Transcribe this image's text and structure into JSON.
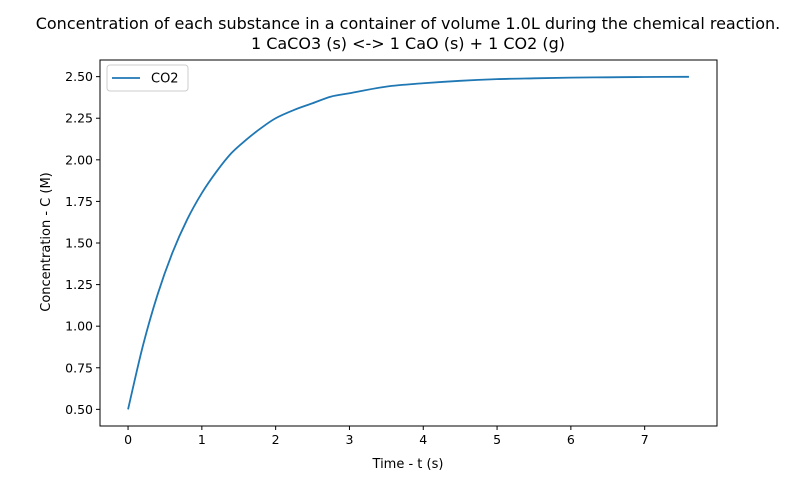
{
  "chart_data": {
    "type": "line",
    "title_line1": "Concentration of each substance in a container of volume 1.0L during the chemical reaction.",
    "title_line2": "1 CaCO3 (s) <-> 1 CaO (s) + 1 CO2 (g)",
    "xlabel": "Time - t (s)",
    "ylabel": "Concentration - C (M)",
    "xlim": [
      -0.38,
      7.98
    ],
    "ylim": [
      0.4,
      2.6
    ],
    "xticks": [
      0,
      1,
      2,
      3,
      4,
      5,
      6,
      7
    ],
    "xtick_labels": [
      "0",
      "1",
      "2",
      "3",
      "4",
      "5",
      "6",
      "7"
    ],
    "yticks": [
      0.5,
      0.75,
      1.0,
      1.25,
      1.5,
      1.75,
      2.0,
      2.25,
      2.5
    ],
    "ytick_labels": [
      "0.50",
      "0.75",
      "1.00",
      "1.25",
      "1.50",
      "1.75",
      "2.00",
      "2.25",
      "2.50"
    ],
    "grid": false,
    "legend_position": "top-left",
    "series": [
      {
        "name": "CO2",
        "color": "#1f77b4",
        "x": [
          0,
          0.2,
          0.4,
          0.6,
          0.8,
          1.0,
          1.2,
          1.4,
          1.6,
          1.8,
          2.0,
          2.25,
          2.5,
          2.75,
          3.0,
          3.5,
          4.0,
          4.5,
          5.0,
          5.5,
          6.0,
          6.5,
          7.0,
          7.6
        ],
        "y": [
          0.5,
          0.88,
          1.19,
          1.44,
          1.64,
          1.8,
          1.93,
          2.04,
          2.12,
          2.19,
          2.25,
          2.3,
          2.34,
          2.38,
          2.4,
          2.44,
          2.46,
          2.475,
          2.485,
          2.49,
          2.494,
          2.496,
          2.498,
          2.499
        ]
      }
    ]
  }
}
